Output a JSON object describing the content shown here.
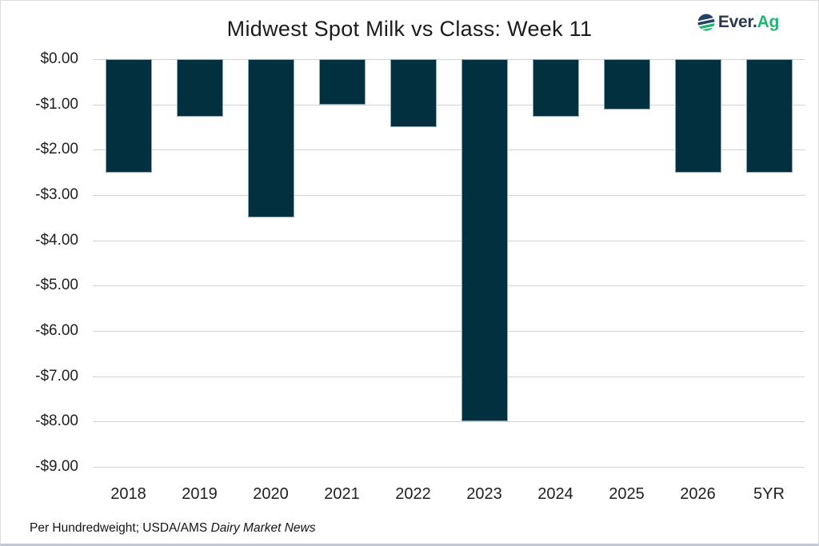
{
  "header": {
    "logo": {
      "text_primary": "Ever.",
      "text_accent": "Ag",
      "primary_color": "#2b3a52",
      "accent_color": "#1fb573",
      "icon_navy": "#274066",
      "icon_green": "#1fb573"
    }
  },
  "chart_data": {
    "type": "bar",
    "title": "Midwest Spot Milk vs Class: Week 11",
    "categories": [
      "2018",
      "2019",
      "2020",
      "2021",
      "2022",
      "2023",
      "2024",
      "2025",
      "2026",
      "5YR"
    ],
    "values": [
      -2.5,
      -1.27,
      -3.5,
      -1.0,
      -1.5,
      -8.0,
      -1.27,
      -1.11,
      -2.5,
      -2.5
    ],
    "ytick_labels": [
      "$0.00",
      "-$1.00",
      "-$2.00",
      "-$3.00",
      "-$4.00",
      "-$5.00",
      "-$6.00",
      "-$7.00",
      "-$8.00",
      "-$9.00"
    ],
    "ylim": [
      -9,
      0
    ],
    "ytick_step": 1,
    "xlabel": "",
    "ylabel": "",
    "grid": true,
    "legend": "none",
    "bar_color": "#03303e",
    "bar_border_color": "#8fa9b5",
    "gridline_color": "#d2d2d2"
  },
  "footer": {
    "note_plain": "Per Hundredweight; USDA/AMS ",
    "note_italic": "Dairy Market News"
  }
}
